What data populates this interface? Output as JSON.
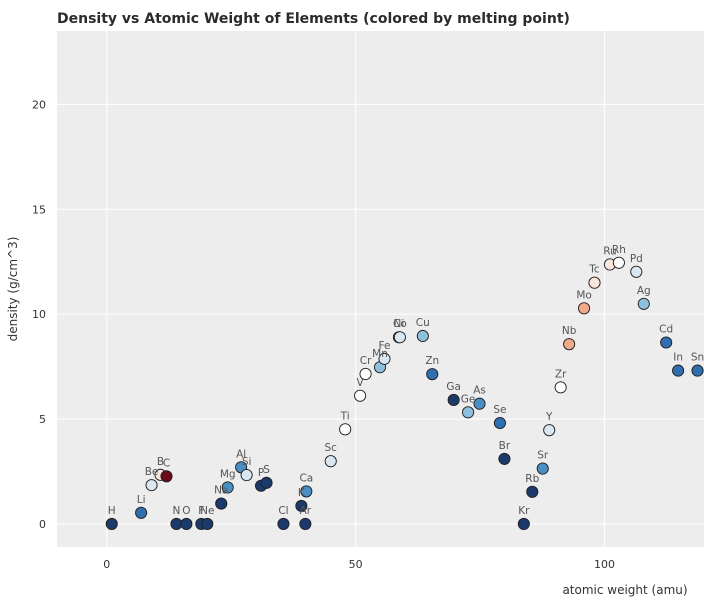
{
  "chart_data": {
    "type": "scatter",
    "title": "Density vs Atomic Weight of Elements (colored by melting point)",
    "xlabel": "atomic weight (amu)",
    "ylabel": "density (g/cm^3)",
    "xlim": [
      -10,
      120
    ],
    "ylim": [
      -1.1,
      23.5
    ],
    "xticks": [
      0,
      50,
      100
    ],
    "yticks": [
      0,
      5,
      10,
      15,
      20
    ],
    "grid": true,
    "legend": "none",
    "colormap": [
      "#1b3a6b",
      "#2f6fb0",
      "#8ec0dd",
      "#ffffff",
      "#f2a98a",
      "#6b0a1d"
    ],
    "points": [
      {
        "label": "H",
        "x": 1.0,
        "y": 0.0,
        "color": "#1b3a6b"
      },
      {
        "label": "Li",
        "x": 6.9,
        "y": 0.53,
        "color": "#2f6fb0"
      },
      {
        "label": "Be",
        "x": 9.0,
        "y": 1.85,
        "color": "#d8e7f2"
      },
      {
        "label": "B",
        "x": 10.8,
        "y": 2.34,
        "color": "#fbe6dc"
      },
      {
        "label": "C",
        "x": 12.0,
        "y": 2.27,
        "color": "#6b0a1d"
      },
      {
        "label": "N",
        "x": 14.0,
        "y": 0.0,
        "color": "#1b3a6b"
      },
      {
        "label": "O",
        "x": 16.0,
        "y": 0.0,
        "color": "#1b3a6b"
      },
      {
        "label": "F",
        "x": 19.0,
        "y": 0.0,
        "color": "#1b3a6b"
      },
      {
        "label": "Ne",
        "x": 20.2,
        "y": 0.0,
        "color": "#1b3a6b"
      },
      {
        "label": "Na",
        "x": 23.0,
        "y": 0.97,
        "color": "#1b3a6b"
      },
      {
        "label": "Mg",
        "x": 24.3,
        "y": 1.74,
        "color": "#4a8fc4"
      },
      {
        "label": "Al",
        "x": 27.0,
        "y": 2.7,
        "color": "#4a8fc4"
      },
      {
        "label": "Si",
        "x": 28.1,
        "y": 2.33,
        "color": "#d8e7f2"
      },
      {
        "label": "P",
        "x": 31.0,
        "y": 1.82,
        "color": "#1b3a6b"
      },
      {
        "label": "S",
        "x": 32.1,
        "y": 1.96,
        "color": "#1b3a6b"
      },
      {
        "label": "Cl",
        "x": 35.5,
        "y": 0.0,
        "color": "#1b3a6b"
      },
      {
        "label": "K",
        "x": 39.1,
        "y": 0.86,
        "color": "#1b3a6b"
      },
      {
        "label": "Ar",
        "x": 39.9,
        "y": 0.0,
        "color": "#1b3a6b"
      },
      {
        "label": "Ca",
        "x": 40.1,
        "y": 1.55,
        "color": "#4a8fc4"
      },
      {
        "label": "Sc",
        "x": 45.0,
        "y": 2.99,
        "color": "#d8e7f2"
      },
      {
        "label": "Ti",
        "x": 47.9,
        "y": 4.51,
        "color": "#ffffff"
      },
      {
        "label": "V",
        "x": 50.9,
        "y": 6.11,
        "color": "#ffffff"
      },
      {
        "label": "Cr",
        "x": 52.0,
        "y": 7.15,
        "color": "#ffffff"
      },
      {
        "label": "Mn",
        "x": 54.9,
        "y": 7.47,
        "color": "#8ec0dd"
      },
      {
        "label": "Fe",
        "x": 55.8,
        "y": 7.87,
        "color": "#d8e7f2"
      },
      {
        "label": "Ni",
        "x": 58.7,
        "y": 8.9,
        "color": "#d8e7f2"
      },
      {
        "label": "Co",
        "x": 58.9,
        "y": 8.9,
        "color": "#d8e7f2"
      },
      {
        "label": "Cu",
        "x": 63.5,
        "y": 8.96,
        "color": "#8ec0dd"
      },
      {
        "label": "Zn",
        "x": 65.4,
        "y": 7.14,
        "color": "#2f6fb0"
      },
      {
        "label": "Ga",
        "x": 69.7,
        "y": 5.91,
        "color": "#1b3a6b"
      },
      {
        "label": "Ge",
        "x": 72.6,
        "y": 5.32,
        "color": "#8ec0dd"
      },
      {
        "label": "As",
        "x": 74.9,
        "y": 5.73,
        "color": "#4a8fc4"
      },
      {
        "label": "Se",
        "x": 79.0,
        "y": 4.81,
        "color": "#2f6fb0"
      },
      {
        "label": "Br",
        "x": 79.9,
        "y": 3.1,
        "color": "#1b3a6b"
      },
      {
        "label": "Kr",
        "x": 83.8,
        "y": 0.0,
        "color": "#1b3a6b"
      },
      {
        "label": "Rb",
        "x": 85.5,
        "y": 1.53,
        "color": "#1b3a6b"
      },
      {
        "label": "Sr",
        "x": 87.6,
        "y": 2.64,
        "color": "#4a8fc4"
      },
      {
        "label": "Y",
        "x": 88.9,
        "y": 4.47,
        "color": "#d8e7f2"
      },
      {
        "label": "Zr",
        "x": 91.2,
        "y": 6.51,
        "color": "#ffffff"
      },
      {
        "label": "Nb",
        "x": 92.9,
        "y": 8.57,
        "color": "#f2a98a"
      },
      {
        "label": "Mo",
        "x": 95.9,
        "y": 10.28,
        "color": "#f2a98a"
      },
      {
        "label": "Tc",
        "x": 98.0,
        "y": 11.5,
        "color": "#fbe6dc"
      },
      {
        "label": "Ru",
        "x": 101.1,
        "y": 12.37,
        "color": "#fbe6dc"
      },
      {
        "label": "Rh",
        "x": 102.9,
        "y": 12.45,
        "color": "#ffffff"
      },
      {
        "label": "Pd",
        "x": 106.4,
        "y": 12.02,
        "color": "#d8e7f2"
      },
      {
        "label": "Ag",
        "x": 107.9,
        "y": 10.49,
        "color": "#8ec0dd"
      },
      {
        "label": "Cd",
        "x": 112.4,
        "y": 8.65,
        "color": "#2f6fb0"
      },
      {
        "label": "In",
        "x": 114.8,
        "y": 7.31,
        "color": "#2f6fb0"
      },
      {
        "label": "Sn",
        "x": 118.7,
        "y": 7.31,
        "color": "#2f6fb0"
      }
    ]
  }
}
